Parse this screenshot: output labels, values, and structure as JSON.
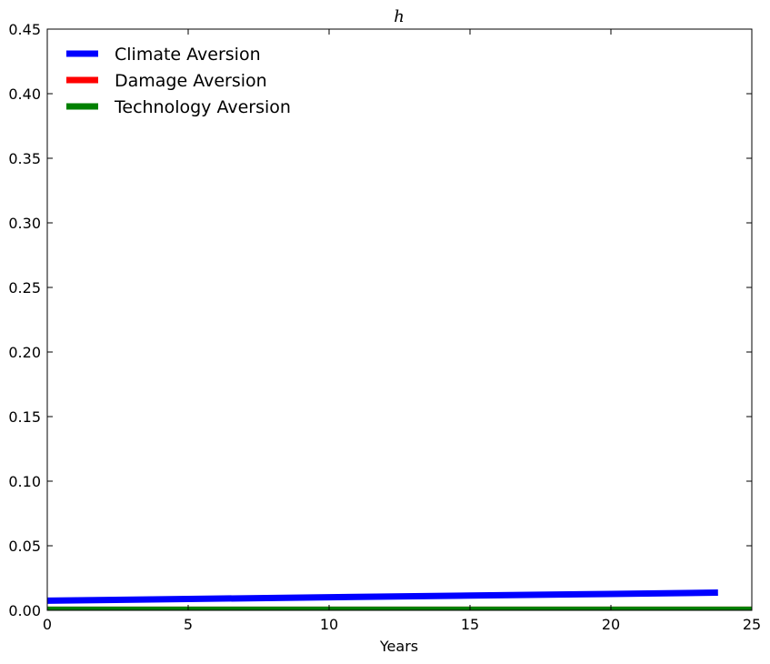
{
  "chart_data": {
    "type": "line",
    "title": "h",
    "xlabel": "Years",
    "ylabel": "",
    "xlim": [
      0,
      25
    ],
    "ylim": [
      0,
      0.45
    ],
    "xticks": [
      "0",
      "5",
      "10",
      "15",
      "20",
      "25"
    ],
    "yticks": [
      "0.00",
      "0.05",
      "0.10",
      "0.15",
      "0.20",
      "0.25",
      "0.30",
      "0.35",
      "0.40",
      "0.45"
    ],
    "grid": false,
    "legend_position": "top-left",
    "series": [
      {
        "name": "Climate Aversion",
        "color": "#0000ff",
        "x": [
          0,
          5,
          10,
          15,
          20,
          23.8
        ],
        "y": [
          0.0075,
          0.0088,
          0.0101,
          0.0114,
          0.0127,
          0.0137
        ]
      },
      {
        "name": "Damage Aversion",
        "color": "#ff0000",
        "x": [
          0,
          5,
          10,
          15,
          20,
          25
        ],
        "y": [
          0.0004,
          0.0004,
          0.0004,
          0.0004,
          0.0004,
          0.0004
        ]
      },
      {
        "name": "Technology Aversion",
        "color": "#008000",
        "x": [
          0,
          5,
          10,
          15,
          20,
          25
        ],
        "y": [
          0.0004,
          0.0004,
          0.0004,
          0.0004,
          0.0004,
          0.0004
        ]
      }
    ]
  }
}
